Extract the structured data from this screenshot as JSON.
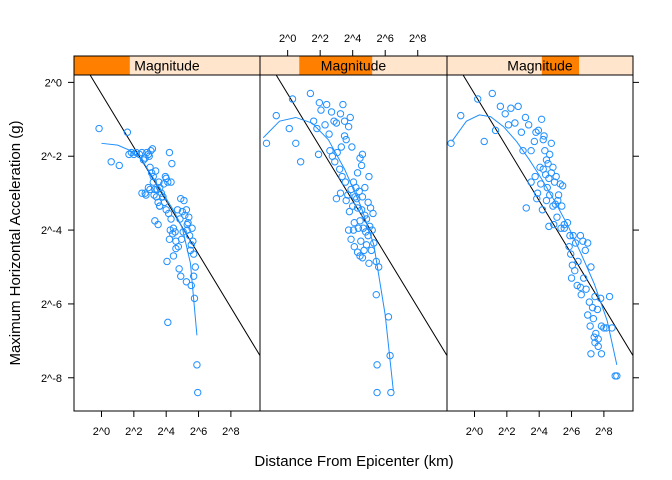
{
  "chart_data": {
    "type": "scatter",
    "xlabel": "Distance From Epicenter (km)",
    "ylabel": "Maximum Horizontal Acceleration (g)",
    "scale": "log2 on both axes",
    "xlim_log2": [
      -1.7,
      9.8
    ],
    "ylim_log2": [
      -8.9,
      0.2
    ],
    "x_ticks": [
      "2^0",
      "2^2",
      "2^4",
      "2^6",
      "2^8"
    ],
    "y_ticks": [
      "2^0",
      "2^-2",
      "2^-4",
      "2^-6",
      "2^-8"
    ],
    "grid": false,
    "colors": {
      "points": "#1f8fff",
      "strip_bg": "#ffe5cc",
      "strip_fg": "#ff7f00",
      "reference_line": "#000000"
    },
    "panels": [
      {
        "strip_label": "Magnitude",
        "strip_range": [
          0,
          0.3
        ],
        "reference_line": {
          "x_log2": [
            -1.7,
            9.8
          ],
          "y_log2": [
            0.92,
            -7.4
          ]
        },
        "smoother": {
          "x_log2": [
            0.0,
            1.0,
            1.8,
            2.5,
            3.0,
            3.5,
            4.0,
            4.5,
            5.0,
            5.5,
            5.9
          ],
          "y_log2": [
            -1.65,
            -1.7,
            -1.85,
            -2.1,
            -2.45,
            -2.8,
            -3.15,
            -3.5,
            -3.95,
            -4.9,
            -6.85
          ]
        },
        "points_log2": [
          [
            -0.15,
            -1.25
          ],
          [
            0.6,
            -2.15
          ],
          [
            1.1,
            -2.25
          ],
          [
            1.6,
            -1.35
          ],
          [
            1.7,
            -1.95
          ],
          [
            1.85,
            -1.9
          ],
          [
            2.0,
            -1.95
          ],
          [
            2.15,
            -1.9
          ],
          [
            2.35,
            -1.95
          ],
          [
            2.5,
            -1.9
          ],
          [
            2.6,
            -2.1
          ],
          [
            2.7,
            -2.05
          ],
          [
            2.8,
            -1.9
          ],
          [
            2.9,
            -1.95
          ],
          [
            2.95,
            -2.0
          ],
          [
            3.05,
            -1.85
          ],
          [
            3.15,
            -1.8
          ],
          [
            3.0,
            -2.3
          ],
          [
            3.1,
            -2.45
          ],
          [
            3.2,
            -2.55
          ],
          [
            3.35,
            -2.4
          ],
          [
            3.45,
            -2.9
          ],
          [
            3.55,
            -2.7
          ],
          [
            3.6,
            -2.85
          ],
          [
            3.7,
            -3.0
          ],
          [
            3.85,
            -2.75
          ],
          [
            4.0,
            -2.6
          ],
          [
            4.1,
            -2.7
          ],
          [
            4.2,
            -1.9
          ],
          [
            4.35,
            -2.2
          ],
          [
            3.2,
            -2.7
          ],
          [
            3.3,
            -2.9
          ],
          [
            3.4,
            -3.1
          ],
          [
            3.5,
            -3.25
          ],
          [
            3.6,
            -3.35
          ],
          [
            3.8,
            -3.1
          ],
          [
            3.9,
            -3.25
          ],
          [
            4.0,
            -3.45
          ],
          [
            4.15,
            -3.55
          ],
          [
            4.3,
            -3.7
          ],
          [
            2.5,
            -3.0
          ],
          [
            2.7,
            -3.0
          ],
          [
            2.9,
            -2.85
          ],
          [
            3.3,
            -3.75
          ],
          [
            3.5,
            -3.85
          ],
          [
            3.6,
            -3.35
          ],
          [
            4.25,
            -4.0
          ],
          [
            4.4,
            -4.1
          ],
          [
            4.55,
            -4.05
          ],
          [
            4.6,
            -4.3
          ],
          [
            4.75,
            -4.45
          ],
          [
            4.95,
            -4.25
          ],
          [
            5.05,
            -4.05
          ],
          [
            5.15,
            -3.6
          ],
          [
            5.3,
            -3.85
          ],
          [
            5.4,
            -3.65
          ],
          [
            5.55,
            -4.4
          ],
          [
            5.65,
            -4.3
          ],
          [
            5.7,
            -4.65
          ],
          [
            5.8,
            -5.0
          ],
          [
            4.2,
            -4.25
          ],
          [
            4.45,
            -4.7
          ],
          [
            4.6,
            -4.5
          ],
          [
            4.8,
            -5.05
          ],
          [
            4.9,
            -5.25
          ],
          [
            5.25,
            -5.4
          ],
          [
            4.05,
            -4.85
          ],
          [
            4.7,
            -3.45
          ],
          [
            4.85,
            -3.7
          ],
          [
            5.0,
            -3.5
          ],
          [
            5.3,
            -4.0
          ],
          [
            5.45,
            -4.15
          ],
          [
            5.5,
            -4.55
          ],
          [
            5.6,
            -3.95
          ],
          [
            4.9,
            -3.15
          ],
          [
            5.1,
            -3.2
          ],
          [
            5.25,
            -3.45
          ],
          [
            5.35,
            -3.8
          ],
          [
            5.55,
            -5.5
          ],
          [
            5.7,
            -5.25
          ],
          [
            5.75,
            -5.85
          ],
          [
            4.1,
            -6.5
          ],
          [
            5.9,
            -7.65
          ],
          [
            5.95,
            -8.4
          ],
          [
            2.75,
            -3.05
          ],
          [
            3.0,
            -2.9
          ],
          [
            3.25,
            -3.05
          ],
          [
            4.45,
            -3.95
          ],
          [
            4.3,
            -2.7
          ],
          [
            3.95,
            -2.55
          ]
        ]
      },
      {
        "strip_label": "Magnitude",
        "strip_range": [
          0.21,
          0.6
        ],
        "reference_line": {
          "x_log2": [
            -1.7,
            9.8
          ],
          "y_log2": [
            0.92,
            -7.4
          ]
        },
        "smoother": {
          "x_log2": [
            -1.5,
            -0.5,
            0.5,
            1.5,
            2.5,
            3.5,
            4.5,
            5.3,
            6.0,
            6.5
          ],
          "y_log2": [
            -1.5,
            -1.05,
            -0.95,
            -1.1,
            -1.55,
            -2.35,
            -3.35,
            -4.4,
            -6.3,
            -8.35
          ]
        },
        "points_log2": [
          [
            -1.3,
            -1.65
          ],
          [
            -0.7,
            -0.9
          ],
          [
            0.1,
            -1.25
          ],
          [
            0.3,
            -0.45
          ],
          [
            0.5,
            -1.65
          ],
          [
            0.8,
            -2.15
          ],
          [
            1.4,
            -0.3
          ],
          [
            1.6,
            -1.05
          ],
          [
            1.8,
            -1.25
          ],
          [
            1.95,
            -0.55
          ],
          [
            2.05,
            -0.75
          ],
          [
            1.9,
            -1.95
          ],
          [
            2.3,
            -1.15
          ],
          [
            2.4,
            -0.6
          ],
          [
            2.55,
            -1.4
          ],
          [
            2.7,
            -0.8
          ],
          [
            2.85,
            -1.05
          ],
          [
            3.0,
            -1.1
          ],
          [
            2.6,
            -1.85
          ],
          [
            2.75,
            -2.0
          ],
          [
            2.9,
            -2.15
          ],
          [
            3.05,
            -1.9
          ],
          [
            3.25,
            -0.85
          ],
          [
            3.4,
            -0.6
          ],
          [
            3.5,
            -1.05
          ],
          [
            3.6,
            -1.55
          ],
          [
            3.75,
            -1.2
          ],
          [
            3.85,
            -0.95
          ],
          [
            3.95,
            -1.75
          ],
          [
            3.2,
            -2.35
          ],
          [
            3.35,
            -2.55
          ],
          [
            3.55,
            -2.7
          ],
          [
            3.7,
            -3.05
          ],
          [
            3.9,
            -2.9
          ],
          [
            4.05,
            -2.7
          ],
          [
            4.2,
            -2.85
          ],
          [
            4.3,
            -2.45
          ],
          [
            4.45,
            -2.05
          ],
          [
            4.55,
            -2.25
          ],
          [
            4.6,
            -1.95
          ],
          [
            3.0,
            -3.15
          ],
          [
            3.25,
            -3.0
          ],
          [
            3.6,
            -3.2
          ],
          [
            3.8,
            -3.5
          ],
          [
            4.0,
            -3.35
          ],
          [
            4.15,
            -3.1
          ],
          [
            4.3,
            -3.4
          ],
          [
            4.45,
            -3.75
          ],
          [
            4.55,
            -3.45
          ],
          [
            4.65,
            -3.95
          ],
          [
            4.75,
            -2.85
          ],
          [
            4.85,
            -3.7
          ],
          [
            4.95,
            -4.15
          ],
          [
            5.05,
            -3.9
          ],
          [
            3.9,
            -4.25
          ],
          [
            4.1,
            -4.45
          ],
          [
            4.3,
            -4.6
          ],
          [
            4.5,
            -4.3
          ],
          [
            4.6,
            -4.75
          ],
          [
            4.7,
            -4.55
          ],
          [
            4.85,
            -4.4
          ],
          [
            5.0,
            -4.9
          ],
          [
            5.15,
            -4.55
          ],
          [
            5.2,
            -4.0
          ],
          [
            5.3,
            -4.35
          ],
          [
            5.45,
            -4.85
          ],
          [
            4.45,
            -4.7
          ],
          [
            4.75,
            -3.6
          ],
          [
            4.95,
            -3.25
          ],
          [
            5.1,
            -3.4
          ],
          [
            5.25,
            -3.55
          ],
          [
            5.0,
            -2.55
          ],
          [
            4.1,
            -3.8
          ],
          [
            4.35,
            -3.95
          ],
          [
            5.45,
            -5.75
          ],
          [
            5.6,
            -5.0
          ],
          [
            5.5,
            -7.65
          ],
          [
            5.5,
            -8.4
          ],
          [
            6.2,
            -6.35
          ],
          [
            6.3,
            -7.4
          ],
          [
            6.35,
            -8.4
          ],
          [
            4.25,
            -3.15
          ],
          [
            4.4,
            -2.95
          ],
          [
            3.3,
            -1.75
          ],
          [
            3.5,
            -1.45
          ],
          [
            4.6,
            -3.1
          ],
          [
            4.8,
            -4.05
          ],
          [
            3.75,
            -4.0
          ],
          [
            4.05,
            -4.0
          ]
        ]
      },
      {
        "strip_label": "Magnitude",
        "strip_range": [
          0.51,
          0.71
        ],
        "reference_line": {
          "x_log2": [
            -1.7,
            9.8
          ],
          "y_log2": [
            0.92,
            -7.4
          ]
        },
        "smoother": {
          "x_log2": [
            -1.4,
            -0.5,
            0.3,
            1.0,
            1.8,
            2.6,
            3.4,
            4.2,
            5.0,
            5.8,
            6.6,
            7.4,
            8.2,
            8.8
          ],
          "y_log2": [
            -1.6,
            -1.05,
            -0.88,
            -0.93,
            -1.2,
            -1.6,
            -2.1,
            -2.65,
            -3.25,
            -3.9,
            -4.65,
            -5.45,
            -6.45,
            -7.65
          ]
        },
        "points_log2": [
          [
            -1.45,
            -1.65
          ],
          [
            -0.85,
            -0.9
          ],
          [
            0.2,
            -0.45
          ],
          [
            0.6,
            -1.6
          ],
          [
            1.1,
            -0.3
          ],
          [
            1.3,
            -1.3
          ],
          [
            1.6,
            -0.65
          ],
          [
            1.9,
            -0.85
          ],
          [
            2.1,
            -1.15
          ],
          [
            2.25,
            -0.7
          ],
          [
            2.5,
            -1.1
          ],
          [
            2.7,
            -0.65
          ],
          [
            2.9,
            -1.35
          ],
          [
            3.0,
            -1.85
          ],
          [
            3.15,
            -0.95
          ],
          [
            3.35,
            -1.15
          ],
          [
            3.5,
            -1.85
          ],
          [
            3.7,
            -1.6
          ],
          [
            3.8,
            -1.35
          ],
          [
            3.95,
            -1.3
          ],
          [
            4.05,
            -2.3
          ],
          [
            4.15,
            -1.0
          ],
          [
            4.25,
            -1.55
          ],
          [
            4.35,
            -1.85
          ],
          [
            4.45,
            -2.1
          ],
          [
            4.55,
            -2.2
          ],
          [
            4.65,
            -1.95
          ],
          [
            4.75,
            -1.65
          ],
          [
            3.5,
            -2.7
          ],
          [
            3.75,
            -2.55
          ],
          [
            3.9,
            -3.0
          ],
          [
            4.1,
            -2.75
          ],
          [
            4.25,
            -2.35
          ],
          [
            4.4,
            -2.5
          ],
          [
            4.5,
            -2.85
          ],
          [
            4.6,
            -2.6
          ],
          [
            4.75,
            -2.45
          ],
          [
            4.85,
            -2.3
          ],
          [
            4.95,
            -2.7
          ],
          [
            5.05,
            -2.55
          ],
          [
            3.85,
            -3.15
          ],
          [
            4.2,
            -3.45
          ],
          [
            4.45,
            -3.2
          ],
          [
            4.65,
            -3.05
          ],
          [
            4.85,
            -3.35
          ],
          [
            5.0,
            -3.3
          ],
          [
            5.15,
            -3.2
          ],
          [
            5.3,
            -2.75
          ],
          [
            5.45,
            -2.8
          ],
          [
            5.55,
            -3.85
          ],
          [
            4.6,
            -3.9
          ],
          [
            4.9,
            -3.85
          ],
          [
            5.1,
            -3.65
          ],
          [
            5.35,
            -3.95
          ],
          [
            5.55,
            -3.95
          ],
          [
            5.75,
            -3.8
          ],
          [
            5.9,
            -4.15
          ],
          [
            6.1,
            -4.15
          ],
          [
            6.25,
            -4.35
          ],
          [
            5.85,
            -4.45
          ],
          [
            5.95,
            -4.65
          ],
          [
            6.05,
            -4.95
          ],
          [
            6.2,
            -5.1
          ],
          [
            6.4,
            -4.85
          ],
          [
            6.55,
            -4.15
          ],
          [
            6.7,
            -4.3
          ],
          [
            6.85,
            -4.55
          ],
          [
            7.0,
            -4.35
          ],
          [
            7.2,
            -5.0
          ],
          [
            6.35,
            -5.5
          ],
          [
            6.55,
            -5.55
          ],
          [
            6.75,
            -5.3
          ],
          [
            6.9,
            -5.6
          ],
          [
            7.1,
            -5.95
          ],
          [
            7.3,
            -6.1
          ],
          [
            7.45,
            -5.8
          ],
          [
            7.6,
            -6.15
          ],
          [
            7.8,
            -5.85
          ],
          [
            7.15,
            -6.6
          ],
          [
            7.35,
            -6.4
          ],
          [
            7.5,
            -6.8
          ],
          [
            7.65,
            -6.95
          ],
          [
            7.85,
            -6.6
          ],
          [
            8.0,
            -6.65
          ],
          [
            8.15,
            -6.65
          ],
          [
            7.2,
            -7.35
          ],
          [
            7.45,
            -7.05
          ],
          [
            7.65,
            -7.15
          ],
          [
            7.85,
            -7.35
          ],
          [
            8.35,
            -5.8
          ],
          [
            8.5,
            -6.65
          ],
          [
            8.7,
            -7.95
          ],
          [
            8.8,
            -7.95
          ],
          [
            6.0,
            -5.3
          ],
          [
            5.2,
            -3.05
          ],
          [
            5.4,
            -3.35
          ],
          [
            4.3,
            -1.45
          ],
          [
            3.2,
            -3.4
          ],
          [
            6.6,
            -5.75
          ],
          [
            7.0,
            -6.3
          ],
          [
            7.4,
            -6.9
          ]
        ]
      }
    ]
  }
}
